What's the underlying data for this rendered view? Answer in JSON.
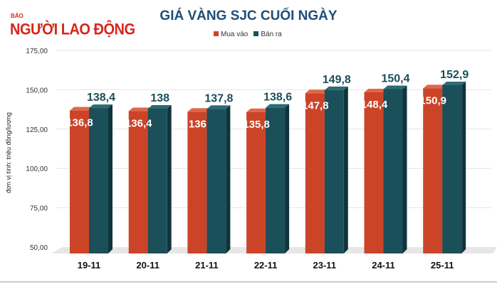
{
  "logo": {
    "small": "BÁO",
    "name": "NGƯỜI LAO ĐỘNG"
  },
  "chart_data": {
    "type": "bar",
    "title": "GIÁ VÀNG SJC CUỐI NGÀY",
    "ylabel": "đơn vị tính: triệu đồng/lượng",
    "xlabel": "",
    "ylim": [
      50,
      175
    ],
    "yticks": [
      "50,00",
      "75,00",
      "100,00",
      "125,00",
      "150,00",
      "175,00"
    ],
    "grid": true,
    "legend_position": "top-center",
    "categories": [
      "19-11",
      "20-11",
      "21-11",
      "22-11",
      "23-11",
      "24-11",
      "25-11"
    ],
    "series": [
      {
        "name": "Mua vào",
        "color": "#cc4428",
        "values": [
          136.8,
          136.4,
          136,
          135.8,
          147.8,
          148.4,
          150.9
        ],
        "labels": [
          "136,8",
          "136,4",
          "136",
          "135,8",
          "147,8",
          "148,4",
          "150,9"
        ]
      },
      {
        "name": "Bán ra",
        "color": "#1b4f5a",
        "values": [
          138.4,
          138,
          137.8,
          138.6,
          149.8,
          150.4,
          152.9
        ],
        "labels": [
          "138,4",
          "138",
          "137,8",
          "138,6",
          "149,8",
          "150,4",
          "152,9"
        ]
      }
    ]
  }
}
